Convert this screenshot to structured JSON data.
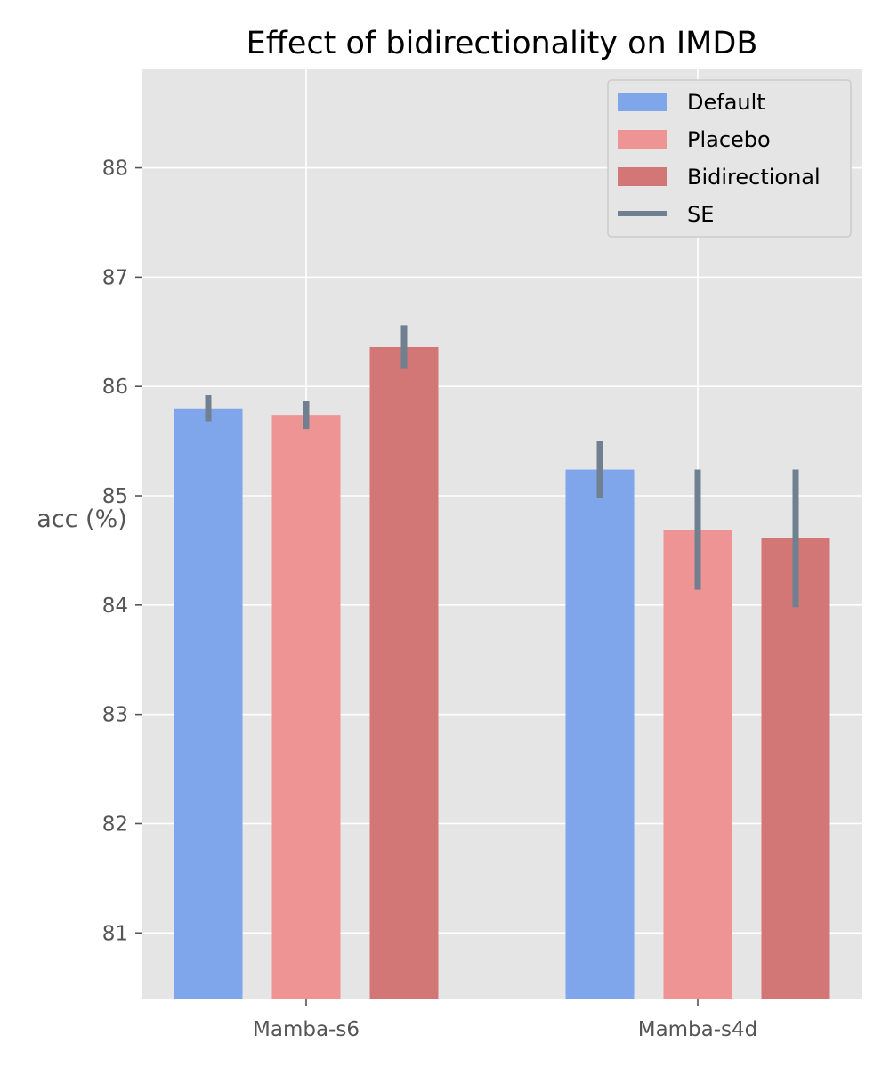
{
  "chart_data": {
    "type": "bar",
    "title": "Effect of bidirectionality on IMDB",
    "xlabel": "",
    "ylabel": "acc (%)",
    "ylim": [
      80.4,
      88.9
    ],
    "yticks": [
      81,
      82,
      83,
      84,
      85,
      86,
      87,
      88
    ],
    "categories": [
      "Mamba-s6",
      "Mamba-s4d"
    ],
    "grid": true,
    "legend_position": "top-right",
    "series": [
      {
        "name": "Default",
        "values": [
          85.8,
          85.24
        ],
        "se": [
          0.12,
          0.26
        ],
        "color": "#7fa5eb"
      },
      {
        "name": "Placebo",
        "values": [
          85.74,
          84.69
        ],
        "se": [
          0.13,
          0.55
        ],
        "color": "#ee9494"
      },
      {
        "name": "Bidirectional",
        "values": [
          86.36,
          84.61
        ],
        "se": [
          0.2,
          0.63
        ],
        "color": "#d27676"
      }
    ],
    "error_legend_label": "SE",
    "error_color": "#708090"
  }
}
